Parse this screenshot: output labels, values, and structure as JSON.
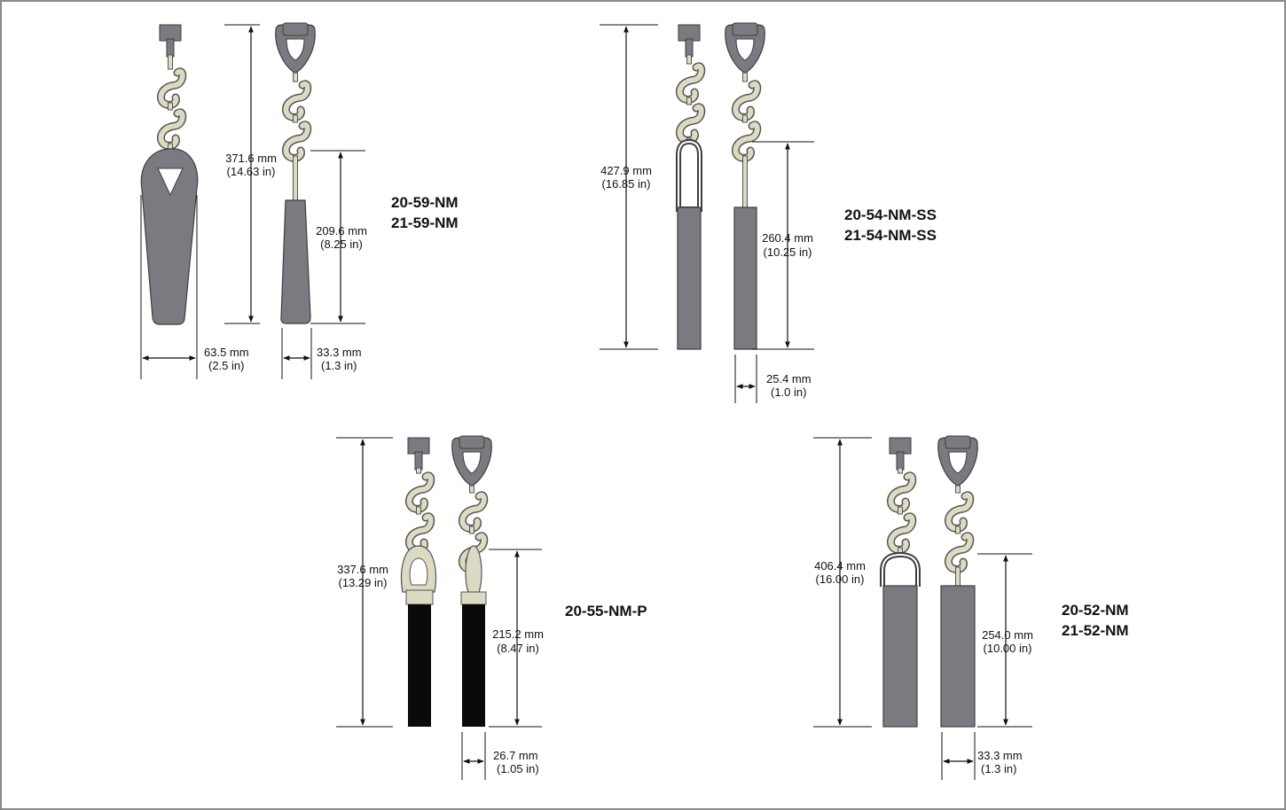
{
  "colors": {
    "border": "#8a8a8a",
    "metal": "#7a7a80",
    "metal_dark": "#3d3d42",
    "hook": "#dcd9c4",
    "hook_stroke": "#55554f",
    "plastic": "#0a0a0a",
    "line": "#111111"
  },
  "groups": [
    {
      "id": "g59",
      "models": [
        "20-59-NM",
        "21-59-NM"
      ],
      "overall": [
        "371.6 mm",
        "(14.63 in)"
      ],
      "partial": [
        "209.6 mm",
        "(8.25 in)"
      ],
      "widthA": [
        "63.5 mm",
        "(2.5 in)"
      ],
      "widthB": [
        "33.3 mm",
        "(1.3 in)"
      ]
    },
    {
      "id": "g54",
      "models": [
        "20-54-NM-SS",
        "21-54-NM-SS"
      ],
      "overall": [
        "427.9 mm",
        "(16.85 in)"
      ],
      "partial": [
        "260.4 mm",
        "(10.25 in)"
      ],
      "widthB": [
        "25.4 mm",
        "(1.0 in)"
      ]
    },
    {
      "id": "g55",
      "models": [
        "20-55-NM-P"
      ],
      "overall": [
        "337.6 mm",
        "(13.29 in)"
      ],
      "partial": [
        "215.2 mm",
        "(8.47 in)"
      ],
      "widthB": [
        "26.7 mm",
        "(1.05 in)"
      ]
    },
    {
      "id": "g52",
      "models": [
        "20-52-NM",
        "21-52-NM"
      ],
      "overall": [
        "406.4 mm",
        "(16.00 in)"
      ],
      "partial": [
        "254.0 mm",
        "(10.00 in)"
      ],
      "widthB": [
        "33.3 mm",
        "(1.3 in)"
      ]
    }
  ]
}
